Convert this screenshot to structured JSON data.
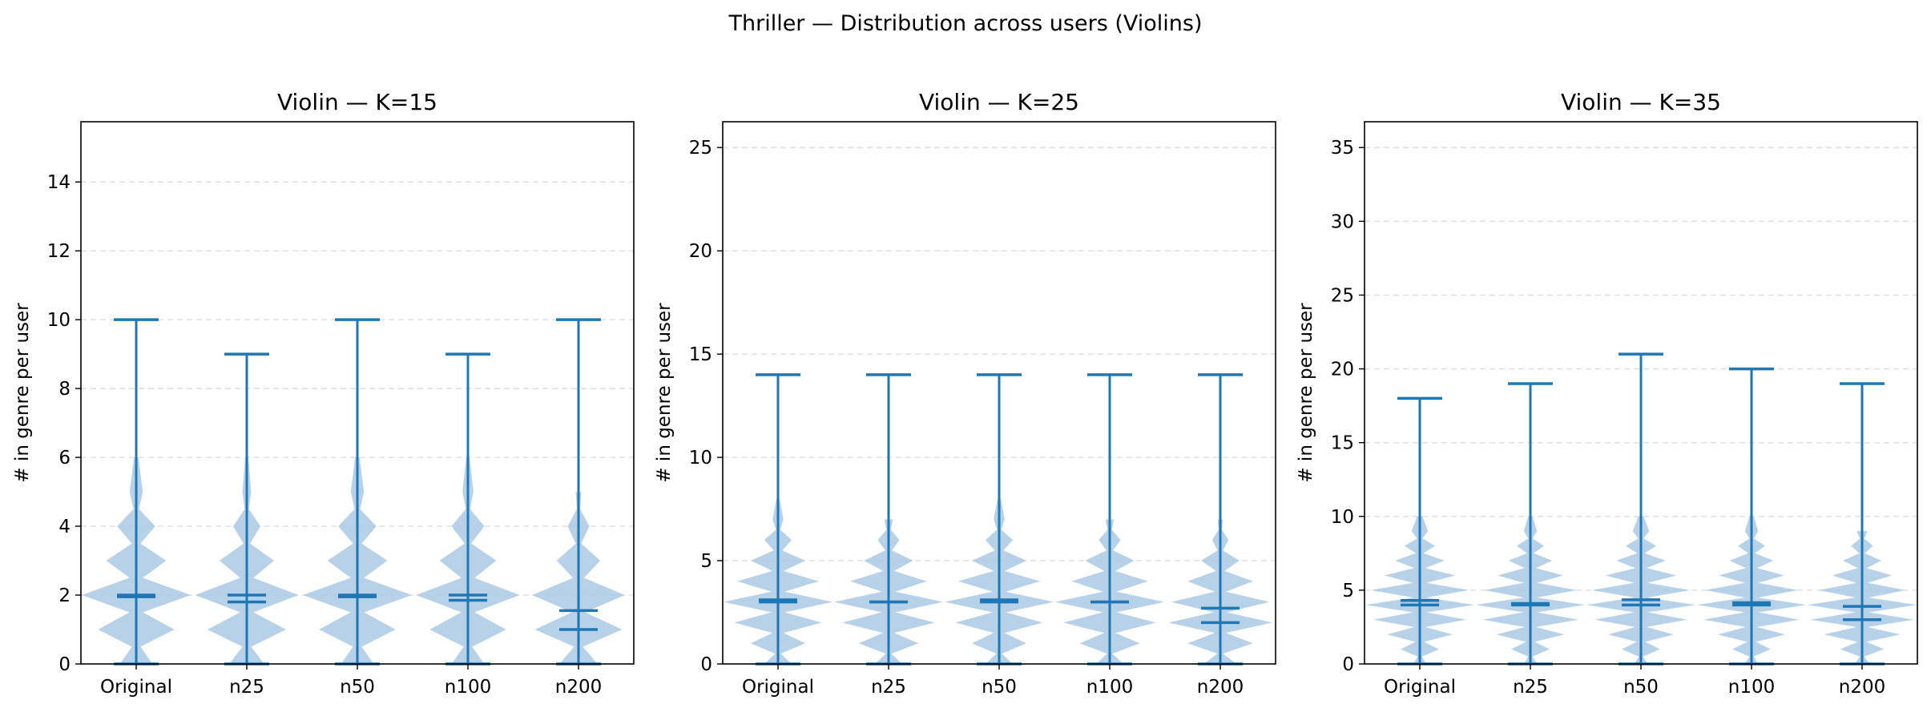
{
  "figure": {
    "title": "Thriller — Distribution across users (Violins)"
  },
  "colors": {
    "body": "#a9c9e4",
    "line": "#1f77b4",
    "grid": "#dddddd",
    "frame": "#000000"
  },
  "chart_data": [
    {
      "type": "violin",
      "title": "Violin — K=15",
      "xlabel": "",
      "ylabel": "# in genre per user",
      "ylim": [
        0,
        15.75
      ],
      "yticks": [
        0,
        2,
        4,
        6,
        8,
        10,
        12,
        14
      ],
      "grid": "horizontal-dashed",
      "categories": [
        "Original",
        "n25",
        "n50",
        "n100",
        "n200"
      ],
      "series": [
        {
          "category": "Original",
          "min": 0,
          "max": 10,
          "mean": 1.95,
          "median": 2,
          "density": [
            [
              0,
              0.3
            ],
            [
              0.5,
              0.08
            ],
            [
              1,
              0.7
            ],
            [
              1.5,
              0.12
            ],
            [
              2,
              1.0
            ],
            [
              2.5,
              0.12
            ],
            [
              3,
              0.55
            ],
            [
              3.5,
              0.08
            ],
            [
              4,
              0.35
            ],
            [
              4.5,
              0.05
            ],
            [
              5,
              0.12
            ],
            [
              6,
              0.04
            ]
          ]
        },
        {
          "category": "n25",
          "min": 0,
          "max": 9,
          "mean": 1.8,
          "median": 2,
          "density": [
            [
              0,
              0.32
            ],
            [
              0.5,
              0.08
            ],
            [
              1,
              0.72
            ],
            [
              1.5,
              0.12
            ],
            [
              2,
              0.95
            ],
            [
              2.5,
              0.12
            ],
            [
              3,
              0.5
            ],
            [
              3.5,
              0.06
            ],
            [
              4,
              0.25
            ],
            [
              4.5,
              0.04
            ],
            [
              5,
              0.08
            ],
            [
              6,
              0.03
            ]
          ]
        },
        {
          "category": "n50",
          "min": 0,
          "max": 10,
          "mean": 1.95,
          "median": 2,
          "density": [
            [
              0,
              0.3
            ],
            [
              0.5,
              0.08
            ],
            [
              1,
              0.7
            ],
            [
              1.5,
              0.12
            ],
            [
              2,
              1.0
            ],
            [
              2.5,
              0.12
            ],
            [
              3,
              0.55
            ],
            [
              3.5,
              0.08
            ],
            [
              4,
              0.35
            ],
            [
              4.5,
              0.05
            ],
            [
              5,
              0.12
            ],
            [
              6,
              0.04
            ]
          ]
        },
        {
          "category": "n100",
          "min": 0,
          "max": 9,
          "mean": 1.85,
          "median": 2,
          "density": [
            [
              0,
              0.3
            ],
            [
              0.5,
              0.08
            ],
            [
              1,
              0.7
            ],
            [
              1.5,
              0.12
            ],
            [
              2,
              0.95
            ],
            [
              2.5,
              0.12
            ],
            [
              3,
              0.52
            ],
            [
              3.5,
              0.06
            ],
            [
              4,
              0.3
            ],
            [
              4.5,
              0.04
            ],
            [
              5,
              0.1
            ],
            [
              6,
              0.03
            ]
          ]
        },
        {
          "category": "n200",
          "min": 0,
          "max": 10,
          "mean": 1.55,
          "median": 1,
          "density": [
            [
              0,
              0.35
            ],
            [
              0.5,
              0.08
            ],
            [
              1,
              0.8
            ],
            [
              1.5,
              0.12
            ],
            [
              2,
              0.85
            ],
            [
              2.5,
              0.1
            ],
            [
              3,
              0.4
            ],
            [
              3.5,
              0.05
            ],
            [
              4,
              0.2
            ],
            [
              4.5,
              0.03
            ],
            [
              5,
              0.05
            ]
          ]
        }
      ]
    },
    {
      "type": "violin",
      "title": "Violin — K=25",
      "xlabel": "",
      "ylabel": "# in genre per user",
      "ylim": [
        0,
        26.25
      ],
      "yticks": [
        0,
        5,
        10,
        15,
        20,
        25
      ],
      "grid": "horizontal-dashed",
      "categories": [
        "Original",
        "n25",
        "n50",
        "n100",
        "n200"
      ],
      "series": [
        {
          "category": "Original",
          "min": 0,
          "max": 14,
          "mean": 3.1,
          "median": 3,
          "density": [
            [
              0,
              0.25
            ],
            [
              0.5,
              0.05
            ],
            [
              1,
              0.5
            ],
            [
              1.5,
              0.1
            ],
            [
              2,
              0.8
            ],
            [
              2.5,
              0.12
            ],
            [
              3,
              1.0
            ],
            [
              3.5,
              0.12
            ],
            [
              4,
              0.75
            ],
            [
              4.5,
              0.1
            ],
            [
              5,
              0.5
            ],
            [
              5.5,
              0.08
            ],
            [
              6,
              0.25
            ],
            [
              6.5,
              0.04
            ],
            [
              7,
              0.1
            ],
            [
              8,
              0.03
            ]
          ]
        },
        {
          "category": "n25",
          "min": 0,
          "max": 14,
          "mean": 3.0,
          "median": 3,
          "density": [
            [
              0,
              0.25
            ],
            [
              0.5,
              0.05
            ],
            [
              1,
              0.55
            ],
            [
              1.5,
              0.1
            ],
            [
              2,
              0.85
            ],
            [
              2.5,
              0.12
            ],
            [
              3,
              1.0
            ],
            [
              3.5,
              0.12
            ],
            [
              4,
              0.7
            ],
            [
              4.5,
              0.1
            ],
            [
              5,
              0.45
            ],
            [
              5.5,
              0.06
            ],
            [
              6,
              0.2
            ],
            [
              6.5,
              0.04
            ],
            [
              7,
              0.08
            ]
          ]
        },
        {
          "category": "n50",
          "min": 0,
          "max": 14,
          "mean": 3.1,
          "median": 3,
          "density": [
            [
              0,
              0.25
            ],
            [
              0.5,
              0.05
            ],
            [
              1,
              0.5
            ],
            [
              1.5,
              0.1
            ],
            [
              2,
              0.8
            ],
            [
              2.5,
              0.12
            ],
            [
              3,
              1.0
            ],
            [
              3.5,
              0.12
            ],
            [
              4,
              0.75
            ],
            [
              4.5,
              0.1
            ],
            [
              5,
              0.5
            ],
            [
              5.5,
              0.08
            ],
            [
              6,
              0.25
            ],
            [
              6.5,
              0.04
            ],
            [
              7,
              0.1
            ],
            [
              8,
              0.03
            ]
          ]
        },
        {
          "category": "n100",
          "min": 0,
          "max": 14,
          "mean": 3.0,
          "median": 3,
          "density": [
            [
              0,
              0.25
            ],
            [
              0.5,
              0.05
            ],
            [
              1,
              0.55
            ],
            [
              1.5,
              0.1
            ],
            [
              2,
              0.85
            ],
            [
              2.5,
              0.12
            ],
            [
              3,
              1.0
            ],
            [
              3.5,
              0.12
            ],
            [
              4,
              0.7
            ],
            [
              4.5,
              0.1
            ],
            [
              5,
              0.45
            ],
            [
              5.5,
              0.06
            ],
            [
              6,
              0.2
            ],
            [
              6.5,
              0.04
            ],
            [
              7,
              0.08
            ]
          ]
        },
        {
          "category": "n200",
          "min": 0,
          "max": 14,
          "mean": 2.7,
          "median": 2,
          "density": [
            [
              0,
              0.3
            ],
            [
              0.5,
              0.05
            ],
            [
              1,
              0.6
            ],
            [
              1.5,
              0.1
            ],
            [
              2,
              0.95
            ],
            [
              2.5,
              0.12
            ],
            [
              3,
              0.9
            ],
            [
              3.5,
              0.1
            ],
            [
              4,
              0.6
            ],
            [
              4.5,
              0.08
            ],
            [
              5,
              0.35
            ],
            [
              5.5,
              0.05
            ],
            [
              6,
              0.15
            ],
            [
              6.5,
              0.03
            ],
            [
              7,
              0.05
            ]
          ]
        }
      ]
    },
    {
      "type": "violin",
      "title": "Violin — K=35",
      "xlabel": "",
      "ylabel": "# in genre per user",
      "ylim": [
        0,
        36.75
      ],
      "yticks": [
        0,
        5,
        10,
        15,
        20,
        25,
        30,
        35
      ],
      "grid": "horizontal-dashed",
      "categories": [
        "Original",
        "n25",
        "n50",
        "n100",
        "n200"
      ],
      "series": [
        {
          "category": "Original",
          "min": 0,
          "max": 18,
          "mean": 4.3,
          "median": 4,
          "density": [
            [
              0,
              0.12
            ],
            [
              0.5,
              0.04
            ],
            [
              1,
              0.35
            ],
            [
              1.5,
              0.08
            ],
            [
              2,
              0.6
            ],
            [
              2.5,
              0.1
            ],
            [
              3,
              0.85
            ],
            [
              3.5,
              0.12
            ],
            [
              4,
              1.0
            ],
            [
              4.5,
              0.12
            ],
            [
              5,
              0.9
            ],
            [
              5.5,
              0.12
            ],
            [
              6,
              0.65
            ],
            [
              6.5,
              0.1
            ],
            [
              7,
              0.45
            ],
            [
              7.5,
              0.07
            ],
            [
              8,
              0.28
            ],
            [
              8.5,
              0.05
            ],
            [
              9,
              0.15
            ],
            [
              10,
              0.05
            ]
          ]
        },
        {
          "category": "n25",
          "min": 0,
          "max": 19,
          "mean": 4.1,
          "median": 4,
          "density": [
            [
              0,
              0.12
            ],
            [
              0.5,
              0.04
            ],
            [
              1,
              0.35
            ],
            [
              1.5,
              0.08
            ],
            [
              2,
              0.62
            ],
            [
              2.5,
              0.1
            ],
            [
              3,
              0.88
            ],
            [
              3.5,
              0.12
            ],
            [
              4,
              1.0
            ],
            [
              4.5,
              0.12
            ],
            [
              5,
              0.85
            ],
            [
              5.5,
              0.12
            ],
            [
              6,
              0.6
            ],
            [
              6.5,
              0.1
            ],
            [
              7,
              0.4
            ],
            [
              7.5,
              0.06
            ],
            [
              8,
              0.25
            ],
            [
              8.5,
              0.04
            ],
            [
              9,
              0.12
            ],
            [
              10,
              0.04
            ]
          ]
        },
        {
          "category": "n50",
          "min": 0,
          "max": 21,
          "mean": 4.35,
          "median": 4,
          "density": [
            [
              0,
              0.12
            ],
            [
              0.5,
              0.04
            ],
            [
              1,
              0.35
            ],
            [
              1.5,
              0.08
            ],
            [
              2,
              0.6
            ],
            [
              2.5,
              0.1
            ],
            [
              3,
              0.85
            ],
            [
              3.5,
              0.12
            ],
            [
              4,
              1.0
            ],
            [
              4.5,
              0.12
            ],
            [
              5,
              0.9
            ],
            [
              5.5,
              0.12
            ],
            [
              6,
              0.65
            ],
            [
              6.5,
              0.1
            ],
            [
              7,
              0.45
            ],
            [
              7.5,
              0.07
            ],
            [
              8,
              0.28
            ],
            [
              8.5,
              0.05
            ],
            [
              9,
              0.15
            ],
            [
              10,
              0.05
            ]
          ]
        },
        {
          "category": "n100",
          "min": 0,
          "max": 20,
          "mean": 4.15,
          "median": 4,
          "density": [
            [
              0,
              0.12
            ],
            [
              0.5,
              0.04
            ],
            [
              1,
              0.35
            ],
            [
              1.5,
              0.08
            ],
            [
              2,
              0.62
            ],
            [
              2.5,
              0.1
            ],
            [
              3,
              0.88
            ],
            [
              3.5,
              0.12
            ],
            [
              4,
              1.0
            ],
            [
              4.5,
              0.12
            ],
            [
              5,
              0.85
            ],
            [
              5.5,
              0.12
            ],
            [
              6,
              0.6
            ],
            [
              6.5,
              0.1
            ],
            [
              7,
              0.4
            ],
            [
              7.5,
              0.06
            ],
            [
              8,
              0.25
            ],
            [
              8.5,
              0.04
            ],
            [
              9,
              0.12
            ],
            [
              10,
              0.04
            ]
          ]
        },
        {
          "category": "n200",
          "min": 0,
          "max": 19,
          "mean": 3.9,
          "median": 3,
          "density": [
            [
              0,
              0.14
            ],
            [
              0.5,
              0.04
            ],
            [
              1,
              0.4
            ],
            [
              1.5,
              0.08
            ],
            [
              2,
              0.7
            ],
            [
              2.5,
              0.1
            ],
            [
              3,
              0.95
            ],
            [
              3.5,
              0.12
            ],
            [
              4,
              1.0
            ],
            [
              4.5,
              0.12
            ],
            [
              5,
              0.8
            ],
            [
              5.5,
              0.1
            ],
            [
              6,
              0.55
            ],
            [
              6.5,
              0.08
            ],
            [
              7,
              0.35
            ],
            [
              7.5,
              0.05
            ],
            [
              8,
              0.2
            ],
            [
              8.5,
              0.04
            ],
            [
              9,
              0.1
            ]
          ]
        }
      ]
    }
  ]
}
